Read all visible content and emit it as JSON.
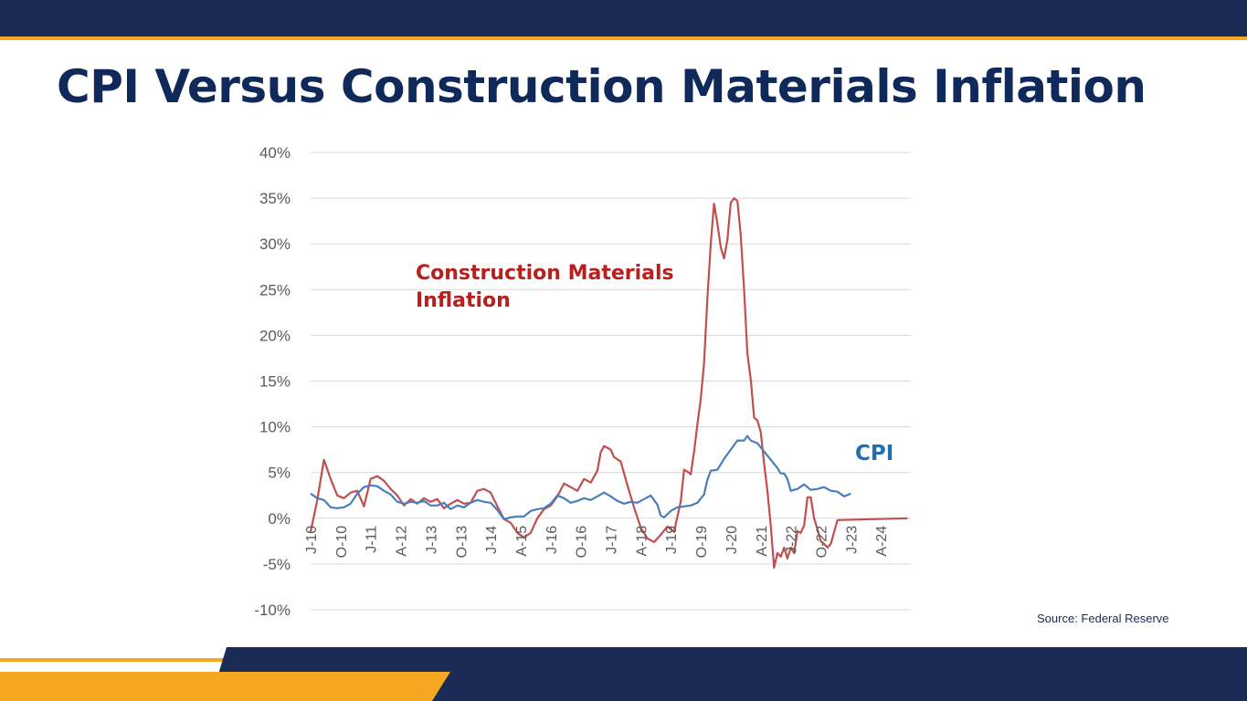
{
  "slide": {
    "title": "CPI Versus Construction Materials Inflation",
    "source": "Source: Federal Reserve"
  },
  "colors": {
    "navy": "#1a2b55",
    "accent": "#f5a623",
    "title": "#0f2a5a",
    "cpi": "#4a7ebb",
    "construction": "#c0504d",
    "construction_label": "#b81f1f",
    "cpi_label": "#1f6fb5"
  },
  "chart_data": {
    "type": "line",
    "ylim": [
      -10,
      40
    ],
    "yticks": [
      40,
      35,
      30,
      25,
      20,
      15,
      10,
      5,
      0,
      -5,
      -10
    ],
    "ytick_labels": [
      "40%",
      "35%",
      "30%",
      "25%",
      "20%",
      "15%",
      "10%",
      "5%",
      "0%",
      "-5%",
      "-10%"
    ],
    "grid": true,
    "x_label_months": [
      0,
      9,
      18,
      27,
      36,
      45,
      54,
      63,
      72,
      81,
      90,
      99,
      108,
      117,
      126,
      135,
      144,
      153,
      162,
      171,
      180
    ],
    "x_labels": [
      "J-10",
      "O-10",
      "J-11",
      "A-12",
      "J-13",
      "O-13",
      "J-14",
      "A-15",
      "J-16",
      "O-16",
      "J-17",
      "A-18",
      "J-19",
      "O-19",
      "J-20",
      "A-21",
      "J-22",
      "O-22",
      "J-23",
      "A-24",
      ""
    ],
    "series": [
      {
        "name": "Construction Materials Inflation",
        "color": "#c0504d",
        "points": [
          [
            0,
            -1.5
          ],
          [
            2,
            2
          ],
          [
            4,
            6.4
          ],
          [
            6,
            4.3
          ],
          [
            8,
            2.5
          ],
          [
            10,
            2.2
          ],
          [
            12,
            2.8
          ],
          [
            14,
            3
          ],
          [
            16,
            1.3
          ],
          [
            18,
            4.3
          ],
          [
            20,
            4.6
          ],
          [
            22,
            4.1
          ],
          [
            24,
            3.2
          ],
          [
            26,
            2.5
          ],
          [
            28,
            1.4
          ],
          [
            30,
            2.1
          ],
          [
            32,
            1.6
          ],
          [
            34,
            2.2
          ],
          [
            36,
            1.8
          ],
          [
            38,
            2.1
          ],
          [
            40,
            1.1
          ],
          [
            42,
            1.6
          ],
          [
            44,
            2
          ],
          [
            46,
            1.6
          ],
          [
            48,
            1.7
          ],
          [
            50,
            3
          ],
          [
            52,
            3.2
          ],
          [
            54,
            2.8
          ],
          [
            56,
            1.3
          ],
          [
            58,
            -0.1
          ],
          [
            60,
            -0.5
          ],
          [
            62,
            -1.6
          ],
          [
            64,
            -2.1
          ],
          [
            66,
            -1.6
          ],
          [
            68,
            0
          ],
          [
            70,
            1
          ],
          [
            72,
            1.4
          ],
          [
            74,
            2.4
          ],
          [
            76,
            3.8
          ],
          [
            78,
            3.4
          ],
          [
            80,
            3
          ],
          [
            82,
            4.3
          ],
          [
            84,
            3.9
          ],
          [
            86,
            5.2
          ],
          [
            87,
            7.2
          ],
          [
            88,
            7.9
          ],
          [
            90,
            7.5
          ],
          [
            91,
            6.7
          ],
          [
            93,
            6.2
          ],
          [
            95,
            3.6
          ],
          [
            97,
            1.2
          ],
          [
            99,
            -1
          ],
          [
            101,
            -2.2
          ],
          [
            103,
            -2.6
          ],
          [
            105,
            -1.8
          ],
          [
            107,
            -0.9
          ],
          [
            109,
            -1.5
          ],
          [
            111,
            1.8
          ],
          [
            112,
            5.3
          ],
          [
            113,
            5.1
          ],
          [
            114,
            4.8
          ],
          [
            115,
            7.3
          ],
          [
            116,
            10.3
          ],
          [
            117,
            13
          ],
          [
            118,
            17
          ],
          [
            119,
            24
          ],
          [
            120,
            30
          ],
          [
            121,
            34.4
          ],
          [
            122,
            32.2
          ],
          [
            123,
            29.6
          ],
          [
            124,
            28.4
          ],
          [
            125,
            30.5
          ],
          [
            126,
            34.5
          ],
          [
            127,
            35
          ],
          [
            128,
            34.7
          ],
          [
            129,
            31
          ],
          [
            130,
            25
          ],
          [
            131,
            18
          ],
          [
            132,
            15.2
          ],
          [
            133,
            11
          ],
          [
            134,
            10.7
          ],
          [
            135,
            9.4
          ],
          [
            136,
            6
          ],
          [
            137,
            3
          ],
          [
            138,
            -0.8
          ],
          [
            139,
            -5.4
          ],
          [
            140,
            -3.8
          ],
          [
            141,
            -4.2
          ],
          [
            142,
            -3.2
          ],
          [
            143,
            -4.4
          ],
          [
            144,
            -3.2
          ],
          [
            145,
            -3.8
          ],
          [
            146,
            -1.4
          ],
          [
            147,
            -1.6
          ],
          [
            148,
            -0.8
          ],
          [
            149,
            2.3
          ],
          [
            150,
            2.3
          ],
          [
            151,
            0
          ],
          [
            152,
            -1.2
          ],
          [
            153,
            -2.5
          ],
          [
            154,
            -2.8
          ],
          [
            155,
            -3.2
          ],
          [
            156,
            -2.8
          ],
          [
            158,
            -0.2
          ],
          [
            179,
            0
          ]
        ]
      },
      {
        "name": "CPI",
        "color": "#4a7ebb",
        "points": [
          [
            0,
            2.7
          ],
          [
            2,
            2.2
          ],
          [
            4,
            2
          ],
          [
            6,
            1.2
          ],
          [
            8,
            1.1
          ],
          [
            10,
            1.2
          ],
          [
            12,
            1.6
          ],
          [
            14,
            2.7
          ],
          [
            16,
            3.4
          ],
          [
            18,
            3.6
          ],
          [
            20,
            3.5
          ],
          [
            22,
            3
          ],
          [
            24,
            2.6
          ],
          [
            26,
            1.8
          ],
          [
            28,
            1.6
          ],
          [
            30,
            1.8
          ],
          [
            32,
            1.7
          ],
          [
            34,
            1.9
          ],
          [
            36,
            1.4
          ],
          [
            38,
            1.4
          ],
          [
            40,
            1.7
          ],
          [
            42,
            1
          ],
          [
            44,
            1.4
          ],
          [
            46,
            1.2
          ],
          [
            48,
            1.7
          ],
          [
            50,
            2
          ],
          [
            52,
            1.8
          ],
          [
            54,
            1.7
          ],
          [
            56,
            0.9
          ],
          [
            58,
            -0.1
          ],
          [
            60,
            0.1
          ],
          [
            62,
            0.2
          ],
          [
            64,
            0.2
          ],
          [
            66,
            0.8
          ],
          [
            68,
            1
          ],
          [
            70,
            1.1
          ],
          [
            72,
            1.6
          ],
          [
            74,
            2.5
          ],
          [
            76,
            2.2
          ],
          [
            78,
            1.7
          ],
          [
            80,
            1.9
          ],
          [
            82,
            2.2
          ],
          [
            84,
            2
          ],
          [
            86,
            2.4
          ],
          [
            88,
            2.8
          ],
          [
            90,
            2.4
          ],
          [
            92,
            1.9
          ],
          [
            94,
            1.6
          ],
          [
            96,
            1.8
          ],
          [
            98,
            1.7
          ],
          [
            100,
            2.1
          ],
          [
            102,
            2.5
          ],
          [
            104,
            1.5
          ],
          [
            105,
            0.3
          ],
          [
            106,
            0.1
          ],
          [
            108,
            0.8
          ],
          [
            110,
            1.2
          ],
          [
            112,
            1.3
          ],
          [
            114,
            1.4
          ],
          [
            116,
            1.7
          ],
          [
            118,
            2.6
          ],
          [
            119,
            4.2
          ],
          [
            120,
            5.2
          ],
          [
            122,
            5.3
          ],
          [
            124,
            6.5
          ],
          [
            126,
            7.5
          ],
          [
            128,
            8.5
          ],
          [
            130,
            8.5
          ],
          [
            131,
            9
          ],
          [
            132,
            8.5
          ],
          [
            134,
            8.2
          ],
          [
            136,
            7.3
          ],
          [
            138,
            6.4
          ],
          [
            140,
            5.5
          ],
          [
            141,
            4.9
          ],
          [
            142,
            4.9
          ],
          [
            143,
            4.3
          ],
          [
            144,
            3
          ],
          [
            146,
            3.2
          ],
          [
            148,
            3.7
          ],
          [
            150,
            3.1
          ],
          [
            152,
            3.2
          ],
          [
            154,
            3.4
          ],
          [
            156,
            3
          ],
          [
            158,
            2.9
          ],
          [
            160,
            2.4
          ],
          [
            162,
            2.7
          ]
        ]
      }
    ],
    "annotations": [
      {
        "text": "Construction Materials",
        "series": 0
      },
      {
        "text": "Inflation",
        "series": 0
      },
      {
        "text": "CPI",
        "series": 1
      }
    ]
  }
}
